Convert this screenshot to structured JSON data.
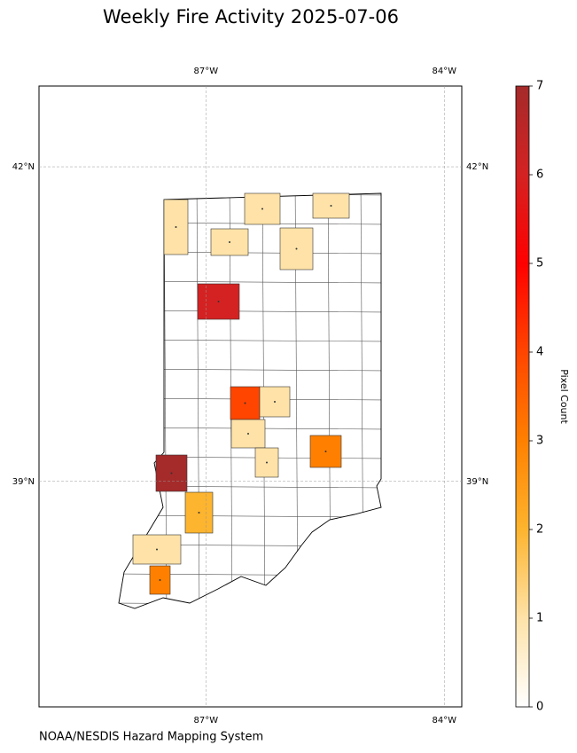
{
  "chart_data": {
    "type": "choropleth",
    "title": "Weekly Fire Activity 2025-07-06",
    "source": "NOAA/NESDIS Hazard Mapping System",
    "xlim": [
      -89.1,
      -83.78
    ],
    "ylim": [
      36.85,
      42.77
    ],
    "xticks": [
      {
        "value": -87,
        "label": "87°W"
      },
      {
        "value": -84,
        "label": "84°W"
      }
    ],
    "yticks": [
      {
        "value": 39,
        "label": "39°N"
      },
      {
        "value": 42,
        "label": "42°N"
      }
    ],
    "grid": true,
    "colorbar": {
      "label": "Pixel Count",
      "lim": [
        0,
        7
      ],
      "ticks": [
        0,
        1,
        2,
        3,
        4,
        5,
        6,
        7
      ]
    },
    "values": [
      1,
      1,
      1,
      1,
      1,
      6,
      4,
      1,
      1,
      3,
      1,
      7,
      2,
      1,
      3
    ]
  }
}
